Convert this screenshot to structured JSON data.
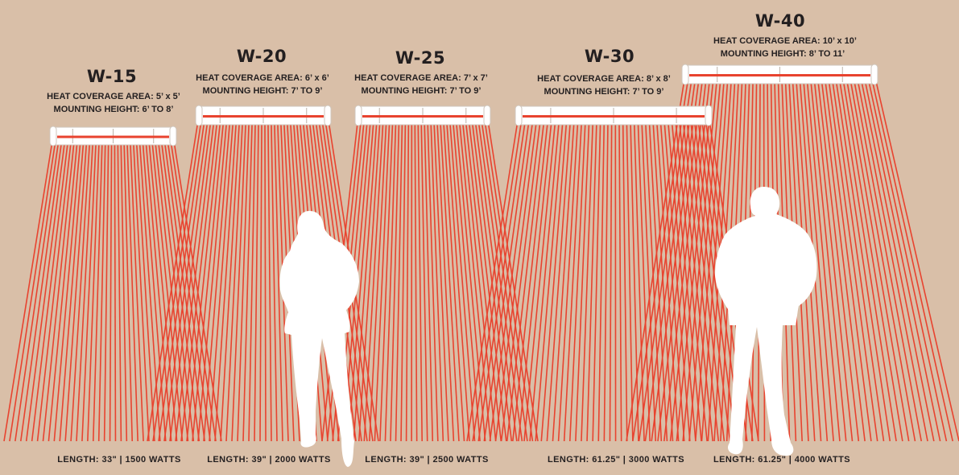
{
  "colors": {
    "background": "#d9bfa8",
    "beam": "#e8432f",
    "heater": "#ffffff",
    "element": "#e8432f",
    "silhouette": "#ffffff",
    "text": "#231f20"
  },
  "heaters": [
    {
      "model": "W-15",
      "coverage": "HEAT COVERAGE AREA: 5’ x 5’",
      "mounting": "MOUNTING HEIGHT: 6’ TO 8’",
      "spec": "LENGTH: 33\" | 1500 WATTS"
    },
    {
      "model": "W-20",
      "coverage": "HEAT COVERAGE AREA: 6’ x 6’",
      "mounting": "MOUNTING HEIGHT: 7’ TO 9’",
      "spec": "LENGTH: 39\" | 2000 WATTS"
    },
    {
      "model": "W-25",
      "coverage": "HEAT COVERAGE AREA: 7’ x 7’",
      "mounting": "MOUNTING HEIGHT: 7’ TO 9’",
      "spec": "LENGTH: 39\" | 2500 WATTS"
    },
    {
      "model": "W-30",
      "coverage": "HEAT COVERAGE AREA: 8’ x 8’",
      "mounting": "MOUNTING HEIGHT: 7’ TO 9’",
      "spec": "LENGTH: 61.25\" | 3000 WATTS"
    },
    {
      "model": "W-40",
      "coverage": "HEAT COVERAGE AREA: 10’ x 10’",
      "mounting": "MOUNTING HEIGHT: 8’ TO 11’",
      "spec": "LENGTH: 61.25\" | 4000 WATTS"
    }
  ],
  "figures": [
    {
      "name": "woman-silhouette"
    },
    {
      "name": "man-silhouette"
    }
  ]
}
